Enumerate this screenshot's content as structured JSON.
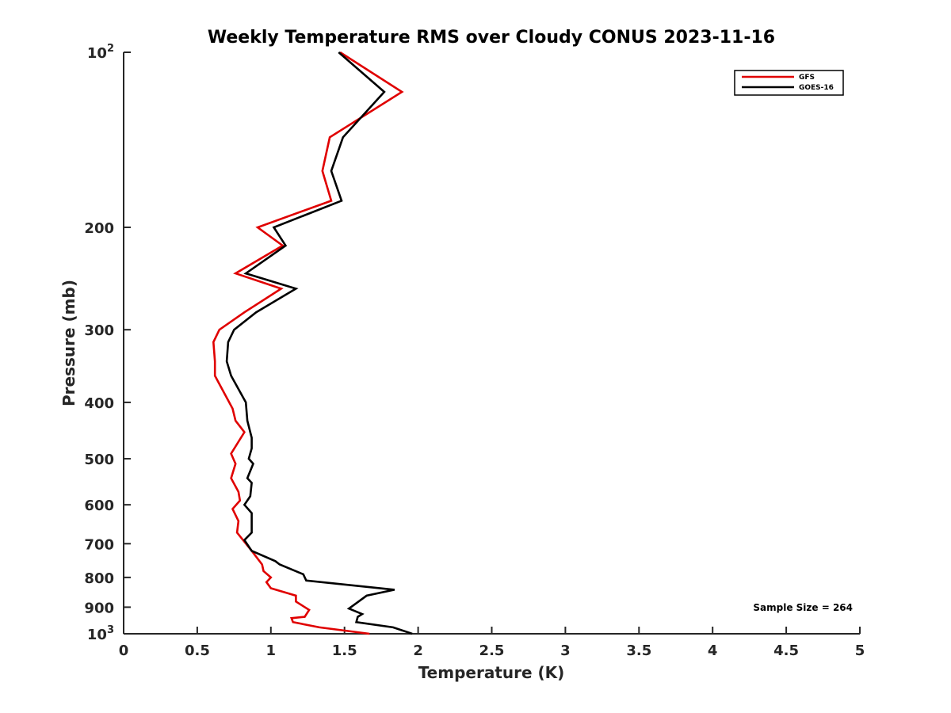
{
  "chart_data": {
    "type": "line",
    "title": "Weekly Temperature RMS over Cloudy CONUS 2023-11-16",
    "xlabel": "Temperature (K)",
    "ylabel": "Pressure (mb)",
    "xlim": [
      0,
      5
    ],
    "ylim": [
      100,
      1000
    ],
    "y_scale": "log",
    "y_reversed": true,
    "grid": false,
    "legend_position": "top-right",
    "x_ticks": [
      0,
      0.5,
      1,
      1.5,
      2,
      2.5,
      3,
      3.5,
      4,
      4.5,
      5
    ],
    "x_tick_labels": [
      "0",
      "0.5",
      "1",
      "1.5",
      "2",
      "2.5",
      "3",
      "3.5",
      "4",
      "4.5",
      "5"
    ],
    "y_ticks": [
      {
        "value": 100,
        "base": "10",
        "exp": "2"
      },
      {
        "value": 200,
        "label": "200"
      },
      {
        "value": 300,
        "label": "300"
      },
      {
        "value": 400,
        "label": "400"
      },
      {
        "value": 500,
        "label": "500"
      },
      {
        "value": 600,
        "label": "600"
      },
      {
        "value": 700,
        "label": "700"
      },
      {
        "value": 800,
        "label": "800"
      },
      {
        "value": 900,
        "label": "900"
      },
      {
        "value": 1000,
        "base": "10",
        "exp": "3"
      }
    ],
    "series": [
      {
        "name": "GFS",
        "color": "#e00000",
        "x": [
          1.47,
          1.89,
          1.4,
          1.35,
          1.41,
          0.91,
          1.08,
          0.76,
          1.07,
          0.82,
          0.65,
          0.61,
          0.62,
          0.62,
          0.67,
          0.74,
          0.76,
          0.82,
          0.73,
          0.76,
          0.73,
          0.78,
          0.79,
          0.74,
          0.78,
          0.77,
          0.87,
          0.94,
          0.95,
          1.0,
          0.97,
          1.0,
          1.17,
          1.17,
          1.26,
          1.23,
          1.14,
          1.15,
          1.33,
          1.67
        ],
        "y": [
          100,
          117,
          140,
          160,
          180,
          200,
          215,
          240,
          255,
          280,
          300,
          315,
          340,
          360,
          380,
          410,
          430,
          450,
          490,
          510,
          540,
          570,
          590,
          610,
          640,
          670,
          720,
          760,
          780,
          800,
          815,
          835,
          860,
          880,
          910,
          935,
          940,
          955,
          975,
          1000
        ]
      },
      {
        "name": "GOES-16",
        "color": "#000000",
        "x": [
          1.46,
          1.77,
          1.49,
          1.41,
          1.48,
          1.02,
          1.1,
          0.83,
          1.17,
          0.9,
          0.75,
          0.71,
          0.7,
          0.73,
          0.83,
          0.84,
          0.87,
          0.87,
          0.85,
          0.88,
          0.84,
          0.87,
          0.86,
          0.82,
          0.87,
          0.87,
          0.82,
          0.87,
          1.03,
          1.06,
          1.22,
          1.24,
          1.84,
          1.65,
          1.53,
          1.62,
          1.59,
          1.58,
          1.83,
          1.96
        ],
        "y": [
          100,
          117,
          140,
          160,
          180,
          200,
          215,
          240,
          255,
          280,
          300,
          315,
          340,
          360,
          400,
          430,
          460,
          480,
          500,
          510,
          540,
          550,
          580,
          600,
          620,
          670,
          690,
          720,
          750,
          760,
          790,
          810,
          840,
          860,
          905,
          925,
          935,
          955,
          975,
          1000
        ]
      }
    ],
    "annotations": [
      {
        "text": "Sample Size = 264"
      }
    ]
  }
}
